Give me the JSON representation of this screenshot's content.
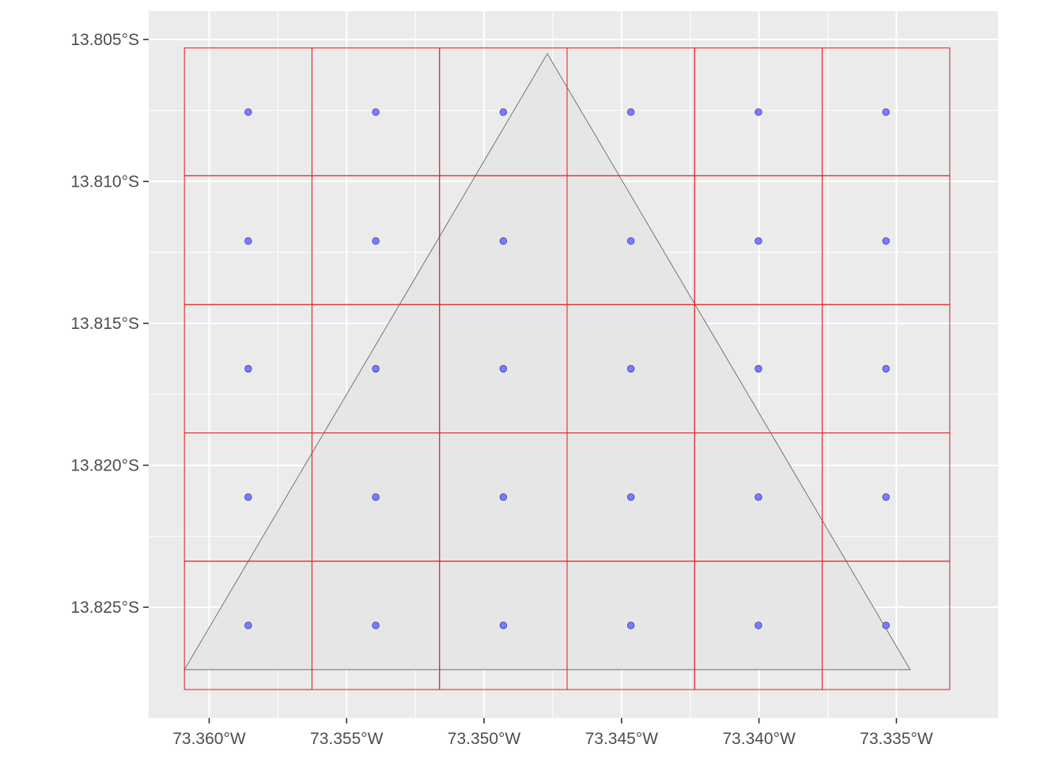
{
  "chart_data": {
    "type": "map",
    "title": "",
    "xlabel": "",
    "ylabel": "",
    "xlim": [
      -73.3622,
      -73.3313
    ],
    "ylim": [
      -13.8289,
      -13.804
    ],
    "grid": true,
    "legend": "none",
    "x_ticks": [
      {
        "value": -73.36,
        "label": "73.360°W"
      },
      {
        "value": -73.355,
        "label": "73.355°W"
      },
      {
        "value": -73.35,
        "label": "73.350°W"
      },
      {
        "value": -73.345,
        "label": "73.345°W"
      },
      {
        "value": -73.34,
        "label": "73.340°W"
      },
      {
        "value": -73.335,
        "label": "73.335°W"
      }
    ],
    "y_ticks": [
      {
        "value": -13.805,
        "label": "13.805°S"
      },
      {
        "value": -13.81,
        "label": "13.810°S"
      },
      {
        "value": -13.815,
        "label": "13.815°S"
      },
      {
        "value": -13.82,
        "label": "13.820°S"
      },
      {
        "value": -13.825,
        "label": "13.825°S"
      }
    ],
    "polygon": {
      "name": "triangle",
      "fill": "#e6e6e6",
      "stroke": "#595959",
      "coords": [
        [
          -73.3609,
          -13.8272
        ],
        [
          -73.3477,
          -13.8055
        ],
        [
          -73.3345,
          -13.8272
        ],
        [
          -73.3609,
          -13.8272
        ]
      ]
    },
    "grid_cells": {
      "stroke": "#e31a1c",
      "x_breaks": [
        -73.3609,
        -73.35626,
        -73.35162,
        -73.34698,
        -73.34234,
        -73.3377,
        -73.33306
      ],
      "y_breaks": [
        -13.8053,
        -13.8098,
        -13.81434,
        -13.81886,
        -13.82338,
        -13.8279
      ]
    },
    "centroids": {
      "fill": "#7b7bff",
      "stroke": "#3a3aa0",
      "x": [
        -73.35858,
        -73.35394,
        -73.3493,
        -73.34466,
        -73.34002,
        -73.33538
      ],
      "y": [
        -13.80756,
        -13.8121,
        -13.8166,
        -13.82112,
        -13.82564
      ]
    }
  }
}
